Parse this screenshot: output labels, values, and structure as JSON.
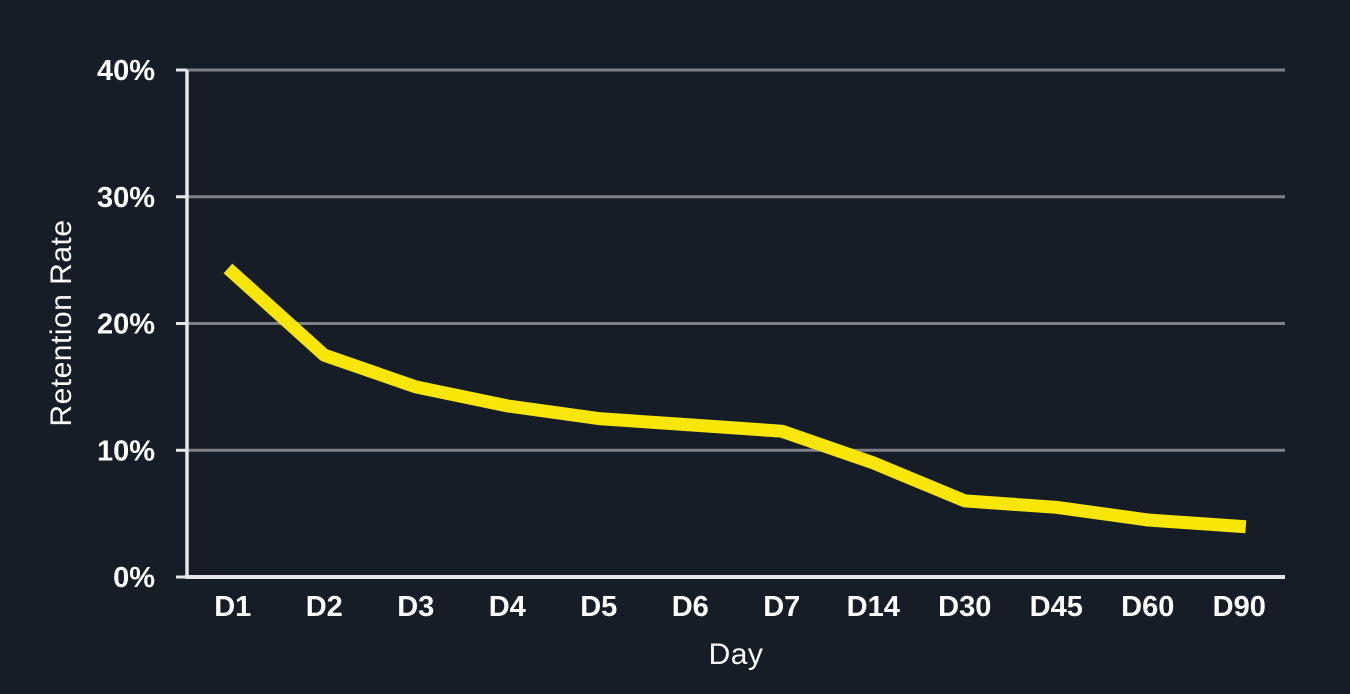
{
  "chart_data": {
    "type": "line",
    "categories": [
      "D1",
      "D2",
      "D3",
      "D4",
      "D5",
      "D6",
      "D7",
      "D14",
      "D30",
      "D45",
      "D60",
      "D90"
    ],
    "values": [
      24,
      17.5,
      15,
      13.5,
      12.5,
      12,
      11.5,
      9,
      6,
      5.5,
      4.5,
      4
    ],
    "series": [
      {
        "name": "Retention Rate",
        "values": [
          24,
          17.5,
          15,
          13.5,
          12.5,
          12,
          11.5,
          9,
          6,
          5.5,
          4.5,
          4
        ]
      }
    ],
    "title": "",
    "xlabel": "Day",
    "ylabel": "Retention Rate",
    "ylim": [
      0,
      40
    ],
    "yticks": [
      0,
      10,
      20,
      30,
      40
    ],
    "ytick_labels": [
      "0%",
      "10%",
      "20%",
      "30%",
      "40%"
    ],
    "grid": "horizontal-only",
    "legend_position": "none",
    "colors": {
      "background": "#171d26",
      "line": "#f7e608",
      "gridline": "#7d8187",
      "axis": "#e4e6e9",
      "text": "#ffffff"
    },
    "line_width": 13
  }
}
